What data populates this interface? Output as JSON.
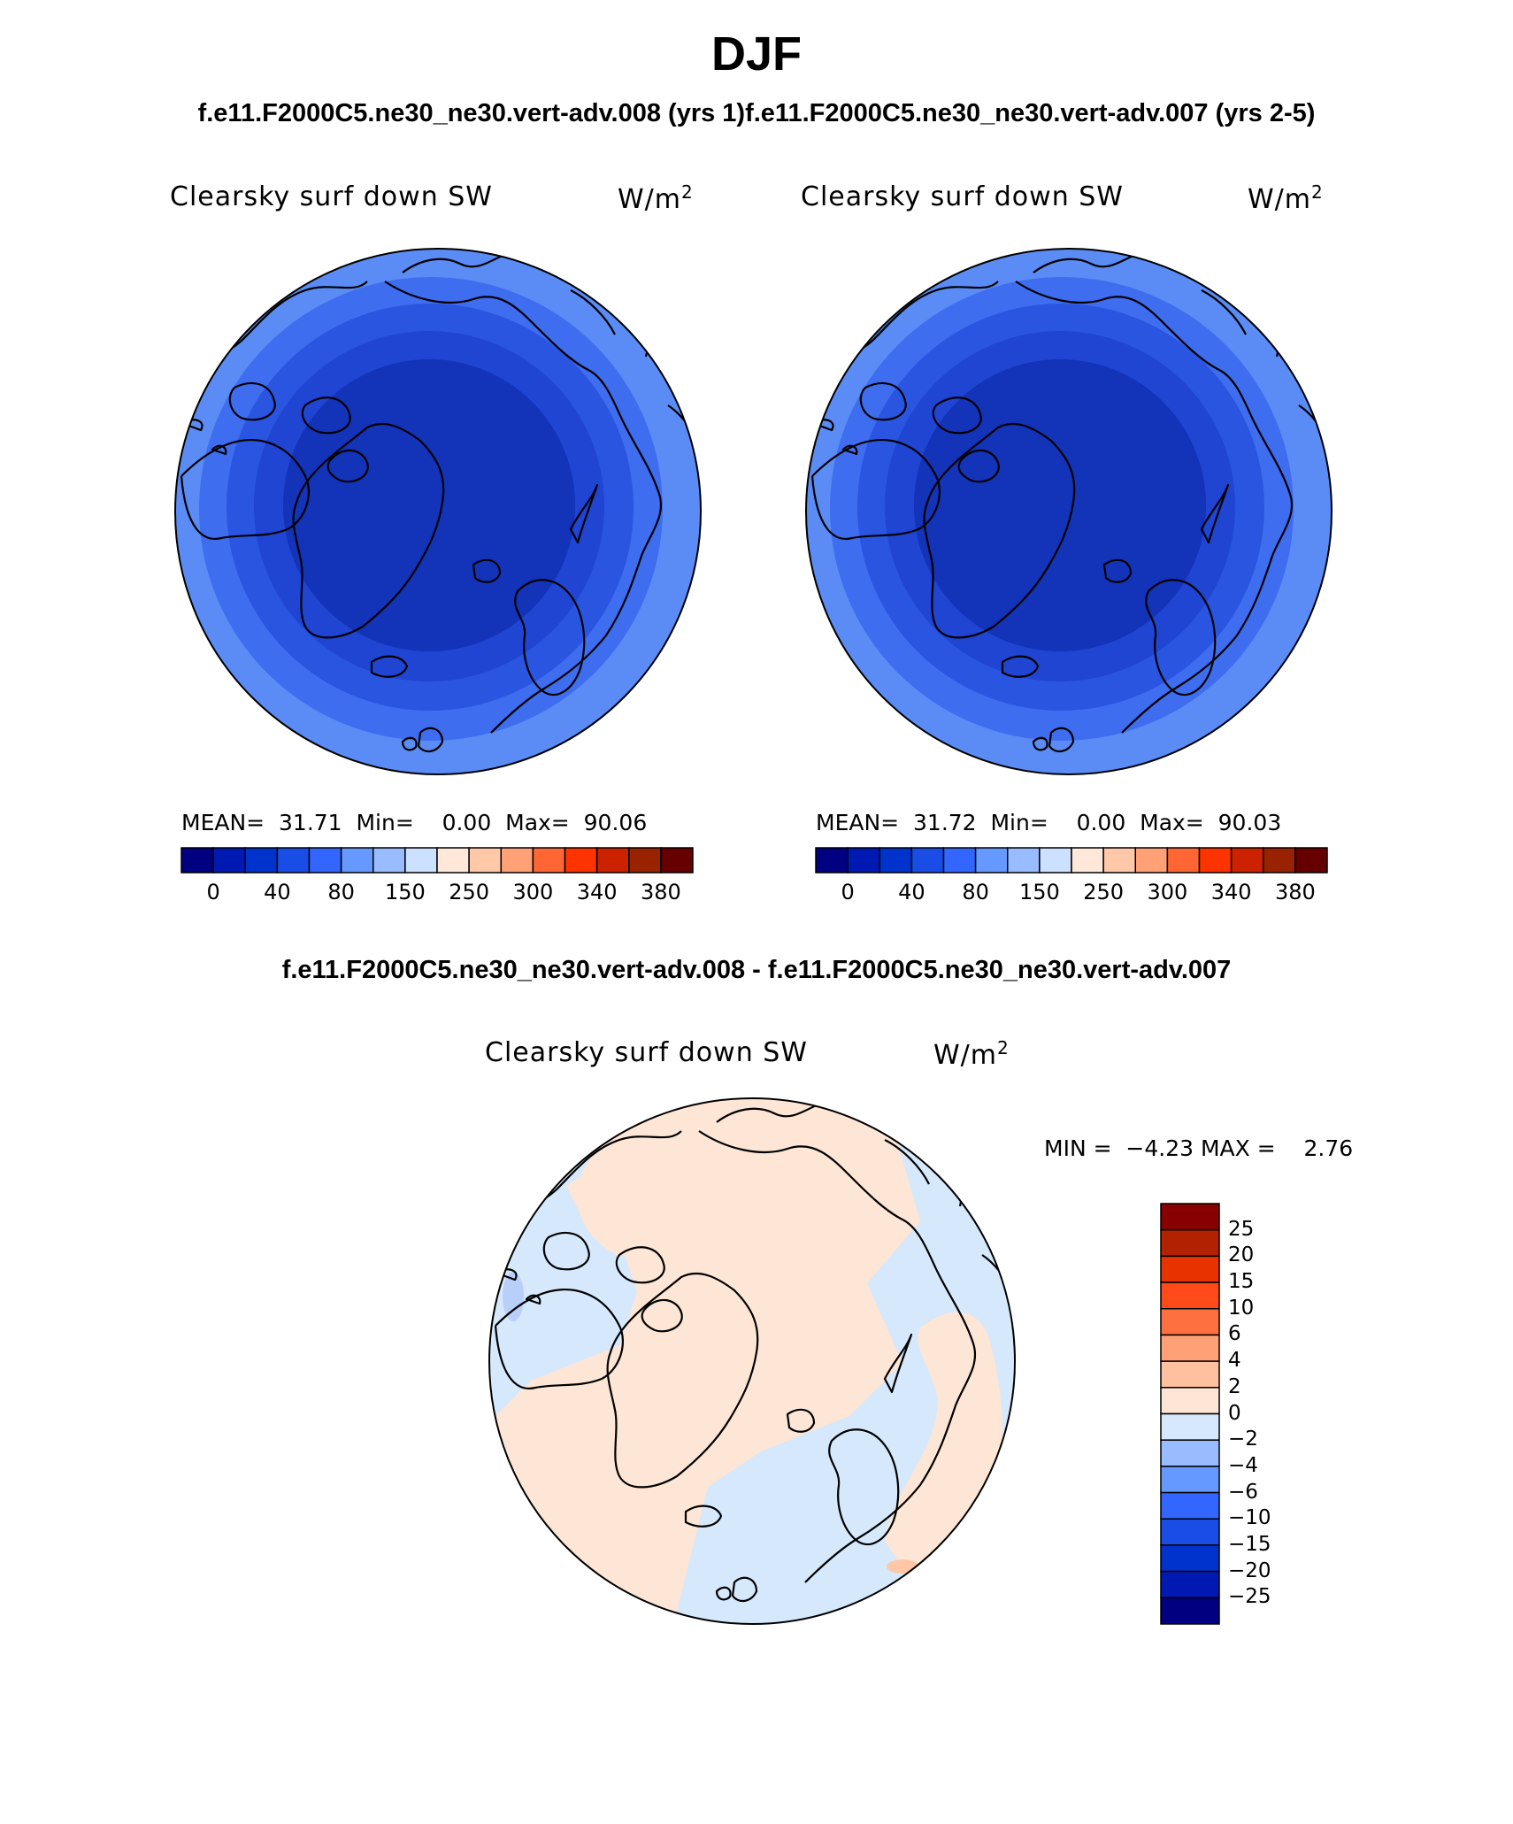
{
  "title": "DJF",
  "top_subtitle": "f.e11.F2000C5.ne30_ne30.vert-adv.008 (yrs 1)f.e11.F2000C5.ne30_ne30.vert-adv.007 (yrs 2-5)",
  "diff_subtitle": "f.e11.F2000C5.ne30_ne30.vert-adv.008 - f.e11.F2000C5.ne30_ne30.vert-adv.007",
  "panels": [
    {
      "label": "Clearsky surf down SW",
      "units": "W/m",
      "units_sup": "2",
      "stats": "MEAN=  31.71  Min=    0.00  Max=  90.06"
    },
    {
      "label": "Clearsky surf down SW",
      "units": "W/m",
      "units_sup": "2",
      "stats": "MEAN=  31.72  Min=    0.00  Max=  90.03"
    },
    {
      "label": "Clearsky surf down SW",
      "units": "W/m",
      "units_sup": "2",
      "stats": "MIN =  −4.23 MAX =    2.76"
    }
  ],
  "main_colorbar": {
    "colors": [
      "#000080",
      "#0019b3",
      "#0033cc",
      "#1a4de6",
      "#3366ff",
      "#6699ff",
      "#99bbff",
      "#cce0ff",
      "#ffe8d9",
      "#ffc8a8",
      "#ffa077",
      "#ff6633",
      "#ff3300",
      "#cc2200",
      "#992200",
      "#660000"
    ],
    "labels": [
      "0",
      "40",
      "80",
      "150",
      "250",
      "300",
      "340",
      "380"
    ]
  },
  "diff_colorbar": {
    "colors": [
      "#000080",
      "#0019b3",
      "#0033cc",
      "#1a4de6",
      "#3366ff",
      "#6699ff",
      "#99bbff",
      "#d6e8fb",
      "#fde6d5",
      "#ffc0a0",
      "#ffa077",
      "#ff7040",
      "#ff4a1a",
      "#e63300",
      "#b32200",
      "#880000"
    ],
    "labels": [
      "25",
      "20",
      "15",
      "10",
      "6",
      "4",
      "2",
      "0",
      "−2",
      "−4",
      "−6",
      "−10",
      "−15",
      "−20",
      "−25"
    ]
  },
  "map_colors": {
    "ring_outer": "#5b8cf5",
    "ring_2": "#3f6df0",
    "ring_3": "#2a55e0",
    "ring_4": "#1f45d2",
    "ring_inner": "#1333b8",
    "diff_neg": "#d6e8fb",
    "diff_pos": "#fde6d5",
    "diff_strong_neg": "#b8cffa",
    "diff_strong_pos": "#ffc7a6"
  }
}
